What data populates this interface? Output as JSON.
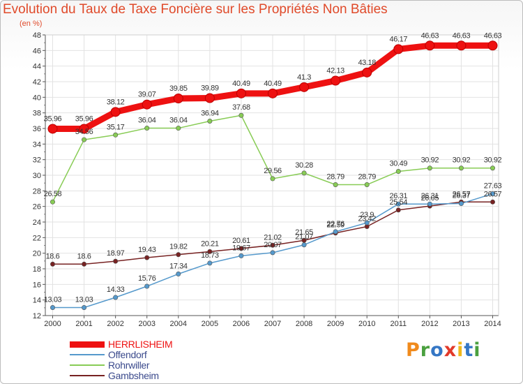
{
  "chart_data": {
    "type": "line",
    "title": "Evolution du Taux de Taxe Foncière sur les Propriétés Non Bâties",
    "subtitle": "(en %)",
    "x": [
      "2000",
      "2001",
      "2002",
      "2003",
      "2004",
      "2005",
      "2006",
      "2007",
      "2008",
      "2009",
      "2010",
      "2011",
      "2012",
      "2013",
      "2014"
    ],
    "yticks": [
      12,
      14,
      16,
      18,
      20,
      22,
      24,
      26,
      28,
      30,
      32,
      34,
      36,
      38,
      40,
      42,
      44,
      46,
      48
    ],
    "ylim": [
      12,
      48
    ],
    "grid": true,
    "legend_position": "bottom-left",
    "series": [
      {
        "name": "HERRLISHEIM",
        "color": "#ee1111",
        "values": [
          35.96,
          35.96,
          38.12,
          39.07,
          39.85,
          39.89,
          40.49,
          40.49,
          41.3,
          42.13,
          43.18,
          46.17,
          46.63,
          46.63,
          46.63
        ],
        "labels": [
          "35.96",
          "35.96",
          "38.12",
          "39.07",
          "39.85",
          "39.89",
          "40.49",
          "40.49",
          "41.3",
          "42.13",
          "43.18",
          "46.17",
          "46.63",
          "46.63",
          "46.63"
        ]
      },
      {
        "name": "Offendorf",
        "color": "#5599cc",
        "values": [
          13.03,
          13.03,
          14.33,
          15.76,
          17.34,
          18.73,
          19.67,
          20.07,
          21.07,
          22.76,
          23.9,
          26.31,
          26.31,
          26.37,
          27.63
        ],
        "labels": [
          "13.03",
          "13.03",
          "14.33",
          "15.76",
          "17.34",
          "18.73",
          "19.67",
          "20.07",
          "21.07",
          "22.76",
          "23.9",
          "26.31",
          "26.31",
          "26.37",
          "27.63"
        ]
      },
      {
        "name": "Rohrwiller",
        "color": "#88cc55",
        "values": [
          26.58,
          34.56,
          35.17,
          36.04,
          36.04,
          36.94,
          37.68,
          29.56,
          30.28,
          28.79,
          28.79,
          30.49,
          30.92,
          30.92,
          30.92
        ],
        "labels": [
          "26.58",
          "34.56",
          "35.17",
          "36.04",
          "36.04",
          "36.94",
          "37.68",
          "29.56",
          "30.28",
          "28.79",
          "28.79",
          "30.49",
          "30.92",
          "30.92",
          "30.92"
        ]
      },
      {
        "name": "Gambsheim",
        "color": "#772222",
        "values": [
          18.6,
          18.6,
          18.97,
          19.43,
          19.82,
          20.21,
          20.61,
          21.02,
          21.65,
          22.59,
          23.42,
          25.54,
          26.05,
          26.57,
          26.57
        ],
        "labels": [
          "18.6",
          "18.6",
          "18.97",
          "19.43",
          "19.82",
          "20.21",
          "20.61",
          "21.02",
          "21.65",
          "22.59",
          "23.42",
          "25.54",
          "26.05",
          "26.57",
          "26.57"
        ]
      }
    ]
  },
  "brand": {
    "text": "Proxiti",
    "colors": [
      "#f08a1c",
      "#4aa03f",
      "#3577c5",
      "#e23a2a",
      "#f0b81c",
      "#3577c5",
      "#4aa03f"
    ]
  }
}
